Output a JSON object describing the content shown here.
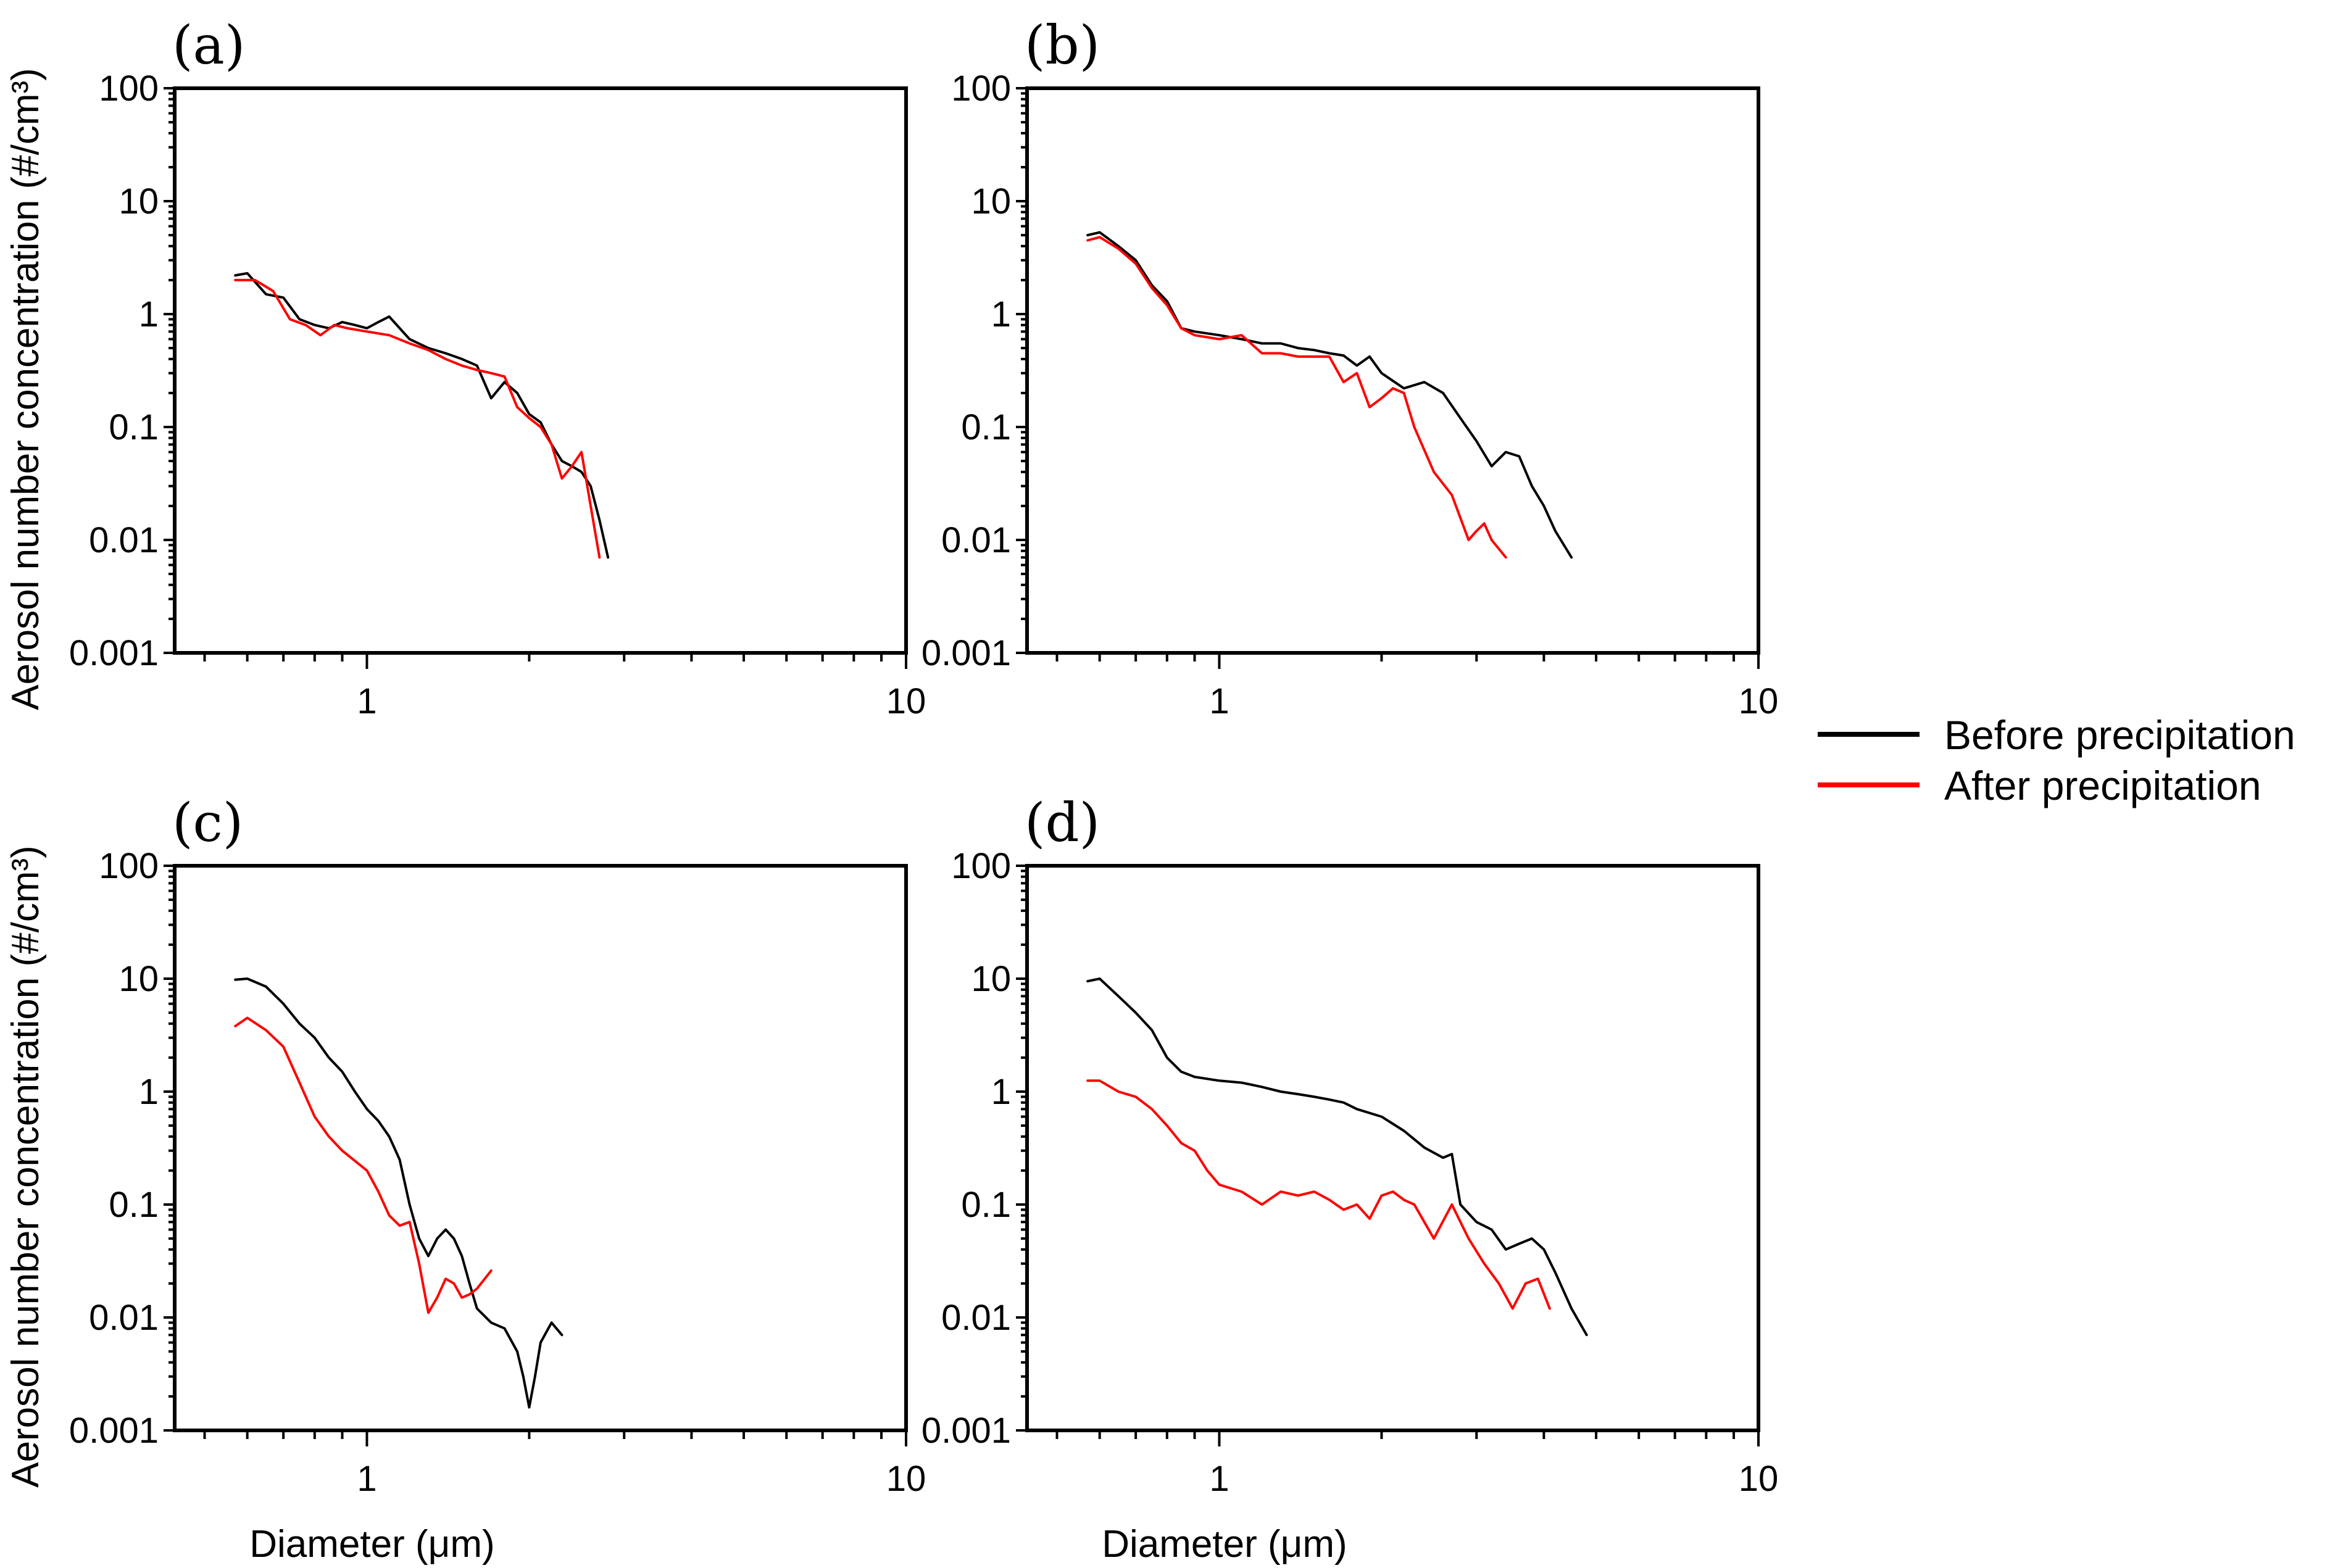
{
  "legend": {
    "entries": [
      {
        "label": "Before precipitation",
        "color": "#000000"
      },
      {
        "label": "After precipitation",
        "color": "#ff0000"
      }
    ]
  },
  "axes_common": {
    "ylabel": "Aerosol number concentration (#/cm³)",
    "xlabel": "Diameter (μm)",
    "xscale": "log",
    "yscale": "log",
    "xlim": [
      0.44,
      10
    ],
    "ylim": [
      0.001,
      100
    ],
    "xtick_labels": [
      "1",
      "10"
    ],
    "xtick_values": [
      1,
      10
    ],
    "ytick_labels": [
      "0.001",
      "0.01",
      "0.1",
      "1",
      "10",
      "100"
    ],
    "ytick_values": [
      0.001,
      0.01,
      0.1,
      1,
      10,
      100
    ]
  },
  "chart_data": [
    {
      "type": "line",
      "panel": "(a)",
      "series": [
        {
          "name": "Before precipitation",
          "color": "#000000",
          "x": [
            0.57,
            0.6,
            0.65,
            0.7,
            0.75,
            0.8,
            0.85,
            0.9,
            0.95,
            1.0,
            1.05,
            1.1,
            1.2,
            1.3,
            1.4,
            1.5,
            1.6,
            1.7,
            1.8,
            1.9,
            2.0,
            2.1,
            2.2,
            2.3,
            2.4,
            2.5,
            2.6,
            2.7,
            2.8
          ],
          "y": [
            2.2,
            2.3,
            1.5,
            1.4,
            0.9,
            0.8,
            0.75,
            0.85,
            0.8,
            0.75,
            0.85,
            0.95,
            0.6,
            0.5,
            0.45,
            0.4,
            0.35,
            0.18,
            0.25,
            0.2,
            0.13,
            0.11,
            0.07,
            0.05,
            0.045,
            0.04,
            0.03,
            0.015,
            0.007
          ]
        },
        {
          "name": "After precipitation",
          "color": "#ff0000",
          "x": [
            0.57,
            0.62,
            0.67,
            0.72,
            0.77,
            0.82,
            0.87,
            0.92,
            1.0,
            1.1,
            1.2,
            1.3,
            1.4,
            1.5,
            1.6,
            1.7,
            1.8,
            1.9,
            2.0,
            2.1,
            2.2,
            2.3,
            2.4,
            2.5,
            2.6,
            2.7
          ],
          "y": [
            2.0,
            2.0,
            1.6,
            0.9,
            0.8,
            0.65,
            0.8,
            0.75,
            0.7,
            0.65,
            0.55,
            0.48,
            0.4,
            0.35,
            0.32,
            0.3,
            0.28,
            0.15,
            0.12,
            0.1,
            0.07,
            0.035,
            0.045,
            0.06,
            0.02,
            0.007
          ]
        }
      ]
    },
    {
      "type": "line",
      "panel": "(b)",
      "series": [
        {
          "name": "Before precipitation",
          "color": "#000000",
          "x": [
            0.57,
            0.6,
            0.65,
            0.7,
            0.75,
            0.8,
            0.85,
            0.9,
            1.0,
            1.1,
            1.2,
            1.3,
            1.4,
            1.5,
            1.6,
            1.7,
            1.8,
            1.9,
            2.0,
            2.2,
            2.4,
            2.6,
            2.8,
            3.0,
            3.2,
            3.4,
            3.6,
            3.8,
            4.0,
            4.2,
            4.5
          ],
          "y": [
            5.0,
            5.3,
            4.0,
            3.0,
            1.8,
            1.3,
            0.75,
            0.7,
            0.65,
            0.6,
            0.55,
            0.55,
            0.5,
            0.48,
            0.45,
            0.43,
            0.35,
            0.42,
            0.3,
            0.22,
            0.25,
            0.2,
            0.12,
            0.075,
            0.045,
            0.06,
            0.055,
            0.03,
            0.02,
            0.012,
            0.007
          ]
        },
        {
          "name": "After precipitation",
          "color": "#ff0000",
          "x": [
            0.57,
            0.6,
            0.65,
            0.7,
            0.75,
            0.8,
            0.85,
            0.9,
            1.0,
            1.1,
            1.2,
            1.3,
            1.4,
            1.5,
            1.6,
            1.7,
            1.8,
            1.9,
            2.0,
            2.1,
            2.2,
            2.3,
            2.5,
            2.7,
            2.9,
            3.0,
            3.1,
            3.2,
            3.4
          ],
          "y": [
            4.5,
            4.8,
            3.8,
            2.8,
            1.7,
            1.2,
            0.75,
            0.65,
            0.6,
            0.65,
            0.45,
            0.45,
            0.42,
            0.42,
            0.42,
            0.25,
            0.3,
            0.15,
            0.18,
            0.22,
            0.2,
            0.1,
            0.04,
            0.025,
            0.01,
            0.012,
            0.014,
            0.01,
            0.007
          ]
        }
      ]
    },
    {
      "type": "line",
      "panel": "(c)",
      "series": [
        {
          "name": "Before precipitation",
          "color": "#000000",
          "x": [
            0.57,
            0.6,
            0.65,
            0.7,
            0.75,
            0.8,
            0.85,
            0.9,
            0.95,
            1.0,
            1.05,
            1.1,
            1.15,
            1.2,
            1.25,
            1.3,
            1.35,
            1.4,
            1.45,
            1.5,
            1.55,
            1.6,
            1.7,
            1.8,
            1.9,
            1.95,
            2.0,
            2.05,
            2.1,
            2.2,
            2.3
          ],
          "y": [
            9.8,
            10.0,
            8.5,
            6.0,
            4.0,
            3.0,
            2.0,
            1.5,
            1.0,
            0.7,
            0.55,
            0.4,
            0.25,
            0.1,
            0.05,
            0.035,
            0.05,
            0.06,
            0.05,
            0.035,
            0.02,
            0.012,
            0.009,
            0.008,
            0.005,
            0.003,
            0.0016,
            0.003,
            0.006,
            0.009,
            0.007
          ]
        },
        {
          "name": "After precipitation",
          "color": "#ff0000",
          "x": [
            0.57,
            0.6,
            0.65,
            0.7,
            0.75,
            0.8,
            0.85,
            0.9,
            1.0,
            1.05,
            1.1,
            1.15,
            1.2,
            1.25,
            1.3,
            1.35,
            1.4,
            1.45,
            1.5,
            1.55,
            1.6,
            1.7
          ],
          "y": [
            3.8,
            4.5,
            3.5,
            2.5,
            1.2,
            0.6,
            0.4,
            0.3,
            0.2,
            0.13,
            0.08,
            0.065,
            0.07,
            0.03,
            0.011,
            0.015,
            0.022,
            0.02,
            0.015,
            0.016,
            0.018,
            0.026
          ]
        }
      ]
    },
    {
      "type": "line",
      "panel": "(d)",
      "series": [
        {
          "name": "Before precipitation",
          "color": "#000000",
          "x": [
            0.57,
            0.6,
            0.65,
            0.7,
            0.75,
            0.8,
            0.85,
            0.9,
            1.0,
            1.1,
            1.2,
            1.3,
            1.4,
            1.5,
            1.6,
            1.7,
            1.8,
            2.0,
            2.2,
            2.4,
            2.6,
            2.7,
            2.8,
            3.0,
            3.2,
            3.4,
            3.6,
            3.8,
            4.0,
            4.2,
            4.5,
            4.8
          ],
          "y": [
            9.5,
            10.0,
            7.0,
            5.0,
            3.5,
            2.0,
            1.5,
            1.35,
            1.25,
            1.2,
            1.1,
            1.0,
            0.95,
            0.9,
            0.85,
            0.8,
            0.7,
            0.6,
            0.45,
            0.32,
            0.26,
            0.28,
            0.1,
            0.07,
            0.06,
            0.04,
            0.045,
            0.05,
            0.04,
            0.025,
            0.012,
            0.007
          ]
        },
        {
          "name": "After precipitation",
          "color": "#ff0000",
          "x": [
            0.57,
            0.6,
            0.65,
            0.7,
            0.75,
            0.8,
            0.85,
            0.9,
            0.95,
            1.0,
            1.1,
            1.2,
            1.3,
            1.4,
            1.5,
            1.6,
            1.7,
            1.8,
            1.9,
            2.0,
            2.1,
            2.2,
            2.3,
            2.5,
            2.7,
            2.9,
            3.1,
            3.3,
            3.5,
            3.7,
            3.9,
            4.1
          ],
          "y": [
            1.25,
            1.25,
            1.0,
            0.9,
            0.7,
            0.5,
            0.35,
            0.3,
            0.2,
            0.15,
            0.13,
            0.1,
            0.13,
            0.12,
            0.13,
            0.11,
            0.09,
            0.1,
            0.075,
            0.12,
            0.13,
            0.11,
            0.1,
            0.05,
            0.1,
            0.05,
            0.03,
            0.02,
            0.012,
            0.02,
            0.022,
            0.012
          ]
        }
      ]
    }
  ]
}
